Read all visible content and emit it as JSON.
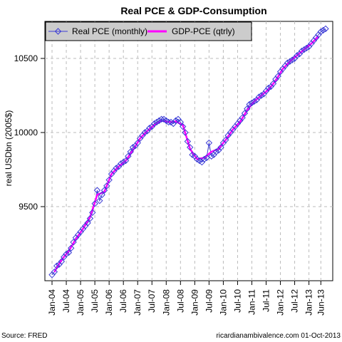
{
  "chart_data": {
    "type": "line",
    "title": "Real PCE & GDP-Consumption",
    "ylabel": "real USDbn (2005$)",
    "ylim": [
      9000,
      10750
    ],
    "yticks": [
      9500,
      10000,
      10500
    ],
    "xlim": [
      "2004-01",
      "2013-10"
    ],
    "xticks": [
      "Jan-04",
      "Jul-04",
      "Jan-05",
      "Jul-05",
      "Jan-06",
      "Jul-06",
      "Jan-07",
      "Jul-07",
      "Jan-08",
      "Jul-08",
      "Jan-09",
      "Jul-09",
      "Jan-10",
      "Jul-10",
      "Jan-11",
      "Jul-11",
      "Jan-12",
      "Jul-12",
      "Jan-13",
      "Jun-13"
    ],
    "grid": true,
    "legend_position": "top-left",
    "colors": {
      "pce": "#3b3bd6",
      "gdp": "#ff00ff",
      "grid": "#bbbbbb",
      "legend_bg": "#cccccc"
    },
    "series": [
      {
        "name": "Real PCE (monthly)",
        "style": "line-diamond",
        "x": [
          "2004-01",
          "2004-02",
          "2004-03",
          "2004-04",
          "2004-05",
          "2004-06",
          "2004-07",
          "2004-08",
          "2004-09",
          "2004-10",
          "2004-11",
          "2004-12",
          "2005-01",
          "2005-02",
          "2005-03",
          "2005-04",
          "2005-05",
          "2005-06",
          "2005-07",
          "2005-08",
          "2005-09",
          "2005-10",
          "2005-11",
          "2005-12",
          "2006-01",
          "2006-02",
          "2006-03",
          "2006-04",
          "2006-05",
          "2006-06",
          "2006-07",
          "2006-08",
          "2006-09",
          "2006-10",
          "2006-11",
          "2006-12",
          "2007-01",
          "2007-02",
          "2007-03",
          "2007-04",
          "2007-05",
          "2007-06",
          "2007-07",
          "2007-08",
          "2007-09",
          "2007-10",
          "2007-11",
          "2007-12",
          "2008-01",
          "2008-02",
          "2008-03",
          "2008-04",
          "2008-05",
          "2008-06",
          "2008-07",
          "2008-08",
          "2008-09",
          "2008-10",
          "2008-11",
          "2008-12",
          "2009-01",
          "2009-02",
          "2009-03",
          "2009-04",
          "2009-05",
          "2009-06",
          "2009-07",
          "2009-08",
          "2009-09",
          "2009-10",
          "2009-11",
          "2009-12",
          "2010-01",
          "2010-02",
          "2010-03",
          "2010-04",
          "2010-05",
          "2010-06",
          "2010-07",
          "2010-08",
          "2010-09",
          "2010-10",
          "2010-11",
          "2010-12",
          "2011-01",
          "2011-02",
          "2011-03",
          "2011-04",
          "2011-05",
          "2011-06",
          "2011-07",
          "2011-08",
          "2011-09",
          "2011-10",
          "2011-11",
          "2011-12",
          "2012-01",
          "2012-02",
          "2012-03",
          "2012-04",
          "2012-05",
          "2012-06",
          "2012-07",
          "2012-08",
          "2012-09",
          "2012-10",
          "2012-11",
          "2012-12",
          "2013-01",
          "2013-02",
          "2013-03",
          "2013-04",
          "2013-05",
          "2013-06",
          "2013-07",
          "2013-08"
        ],
        "values": [
          9040,
          9060,
          9100,
          9110,
          9130,
          9160,
          9180,
          9190,
          9220,
          9260,
          9290,
          9310,
          9330,
          9350,
          9370,
          9390,
          9420,
          9460,
          9520,
          9610,
          9540,
          9580,
          9610,
          9640,
          9680,
          9720,
          9740,
          9760,
          9770,
          9790,
          9800,
          9810,
          9840,
          9870,
          9900,
          9910,
          9930,
          9960,
          9980,
          10000,
          10010,
          10030,
          10040,
          10060,
          10070,
          10080,
          10090,
          10090,
          10080,
          10070,
          10070,
          10060,
          10080,
          10090,
          10070,
          10040,
          10000,
          9940,
          9900,
          9850,
          9840,
          9820,
          9810,
          9800,
          9820,
          9830,
          9930,
          9840,
          9850,
          9870,
          9880,
          9900,
          9930,
          9950,
          9980,
          10000,
          10020,
          10040,
          10060,
          10080,
          10100,
          10130,
          10160,
          10190,
          10200,
          10210,
          10220,
          10240,
          10250,
          10260,
          10280,
          10300,
          10310,
          10330,
          10360,
          10380,
          10410,
          10430,
          10450,
          10470,
          10480,
          10490,
          10500,
          10520,
          10530,
          10550,
          10560,
          10570,
          10580,
          10600,
          10620,
          10640,
          10660,
          10680,
          10690,
          10700
        ]
      },
      {
        "name": "GDP-PCE (qtrly)",
        "style": "line-thick",
        "x": [
          "2004-02",
          "2004-05",
          "2004-08",
          "2004-11",
          "2005-02",
          "2005-05",
          "2005-08",
          "2005-11",
          "2006-02",
          "2006-05",
          "2006-08",
          "2006-11",
          "2007-02",
          "2007-05",
          "2007-08",
          "2007-11",
          "2008-02",
          "2008-05",
          "2008-08",
          "2008-11",
          "2009-02",
          "2009-05",
          "2009-08",
          "2009-11",
          "2010-02",
          "2010-05",
          "2010-08",
          "2010-11",
          "2011-02",
          "2011-05",
          "2011-08",
          "2011-11",
          "2012-02",
          "2012-05",
          "2012-08",
          "2012-11",
          "2013-02",
          "2013-05"
        ],
        "values": [
          9060,
          9140,
          9200,
          9280,
          9350,
          9430,
          9580,
          9600,
          9720,
          9770,
          9810,
          9880,
          9960,
          10010,
          10050,
          10080,
          10070,
          10075,
          10050,
          9890,
          9820,
          9830,
          9870,
          9890,
          9950,
          10020,
          10070,
          10150,
          10210,
          10250,
          10290,
          10350,
          10430,
          10480,
          10520,
          10560,
          10600,
          10650
        ]
      }
    ]
  },
  "footer": {
    "source": "Source: FRED",
    "credit": "ricardianambivalence.com    01-Oct-2013"
  }
}
